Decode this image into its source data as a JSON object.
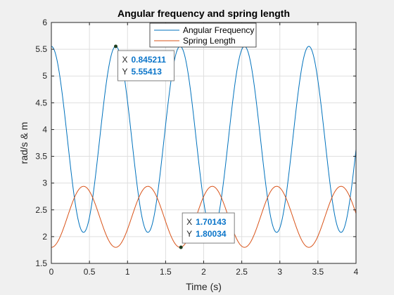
{
  "colors": {
    "angular": "#0072BD",
    "spring": "#D95319",
    "grid": "#dfdfdf",
    "axis": "#262626",
    "tipValue": "#0b75c9"
  },
  "chart_data": {
    "type": "line",
    "title": "Angular frequency and spring length",
    "xlabel": "Time (s)",
    "ylabel": "rad/s & m",
    "xlim": [
      0,
      4
    ],
    "ylim": [
      1.5,
      6
    ],
    "grid": true,
    "legend_position": "top-center",
    "x_ticks": [
      "0",
      "0.5",
      "1",
      "1.5",
      "2",
      "2.5",
      "3",
      "3.5",
      "4"
    ],
    "y_ticks": [
      "1.5",
      "2",
      "2.5",
      "3",
      "3.5",
      "4",
      "4.5",
      "5",
      "5.5",
      "6"
    ],
    "series": [
      {
        "name": "Angular Frequency",
        "color": "#0072BD",
        "min": 2.08,
        "max": 5.55413,
        "period": 0.8452,
        "peak_at": 0.0
      },
      {
        "name": "Spring Length",
        "color": "#D95319",
        "min": 1.80034,
        "max": 2.94,
        "period": 0.8452,
        "trough_at": 0.0
      }
    ],
    "datatips": [
      {
        "x_label": "X",
        "y_label": "Y",
        "x": "0.845211",
        "y": "5.55413",
        "xv": 0.845211,
        "yv": 5.55413,
        "series": "Angular Frequency"
      },
      {
        "x_label": "X",
        "y_label": "Y",
        "x": "1.70143",
        "y": "1.80034",
        "xv": 1.70143,
        "yv": 1.80034,
        "series": "Spring Length"
      }
    ]
  }
}
